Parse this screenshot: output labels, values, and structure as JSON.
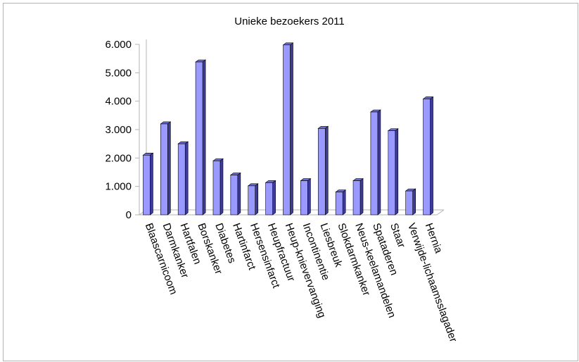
{
  "chart_data": {
    "type": "bar",
    "title": "Unieke bezoekers 2011",
    "xlabel": "",
    "ylabel": "",
    "ylim": [
      0,
      6000
    ],
    "yticks": [
      "0",
      "1.000",
      "2.000",
      "3.000",
      "4.000",
      "5.000",
      "6.000"
    ],
    "ytick_values": [
      0,
      1000,
      2000,
      3000,
      4000,
      5000,
      6000
    ],
    "grid": false,
    "legend": "none",
    "categories": [
      "Blaascarnicoom",
      "Darmkanker",
      "Hartfalen",
      "Borskanker",
      "Diabetes",
      "Hartinfarct",
      "Hersensinfarct",
      "Heupfractuur",
      "Heup-knievervanging",
      "Incontinentie",
      "Liesbreuk",
      "Slokdarmkanker",
      "Neus-keelamandelen",
      "Spataderen",
      "Staar",
      "Verwijde-lichaamsslagader",
      "Hernia"
    ],
    "values": [
      2100,
      3200,
      2500,
      5380,
      1900,
      1400,
      1020,
      1130,
      5980,
      1200,
      3040,
      800,
      1200,
      3620,
      2960,
      840,
      4080
    ],
    "colors": {
      "bar_front": "#9999ff",
      "bar_side": "#3d3d99",
      "bar_top": "#6b6bcc",
      "axis": "#b3b3b3"
    }
  }
}
